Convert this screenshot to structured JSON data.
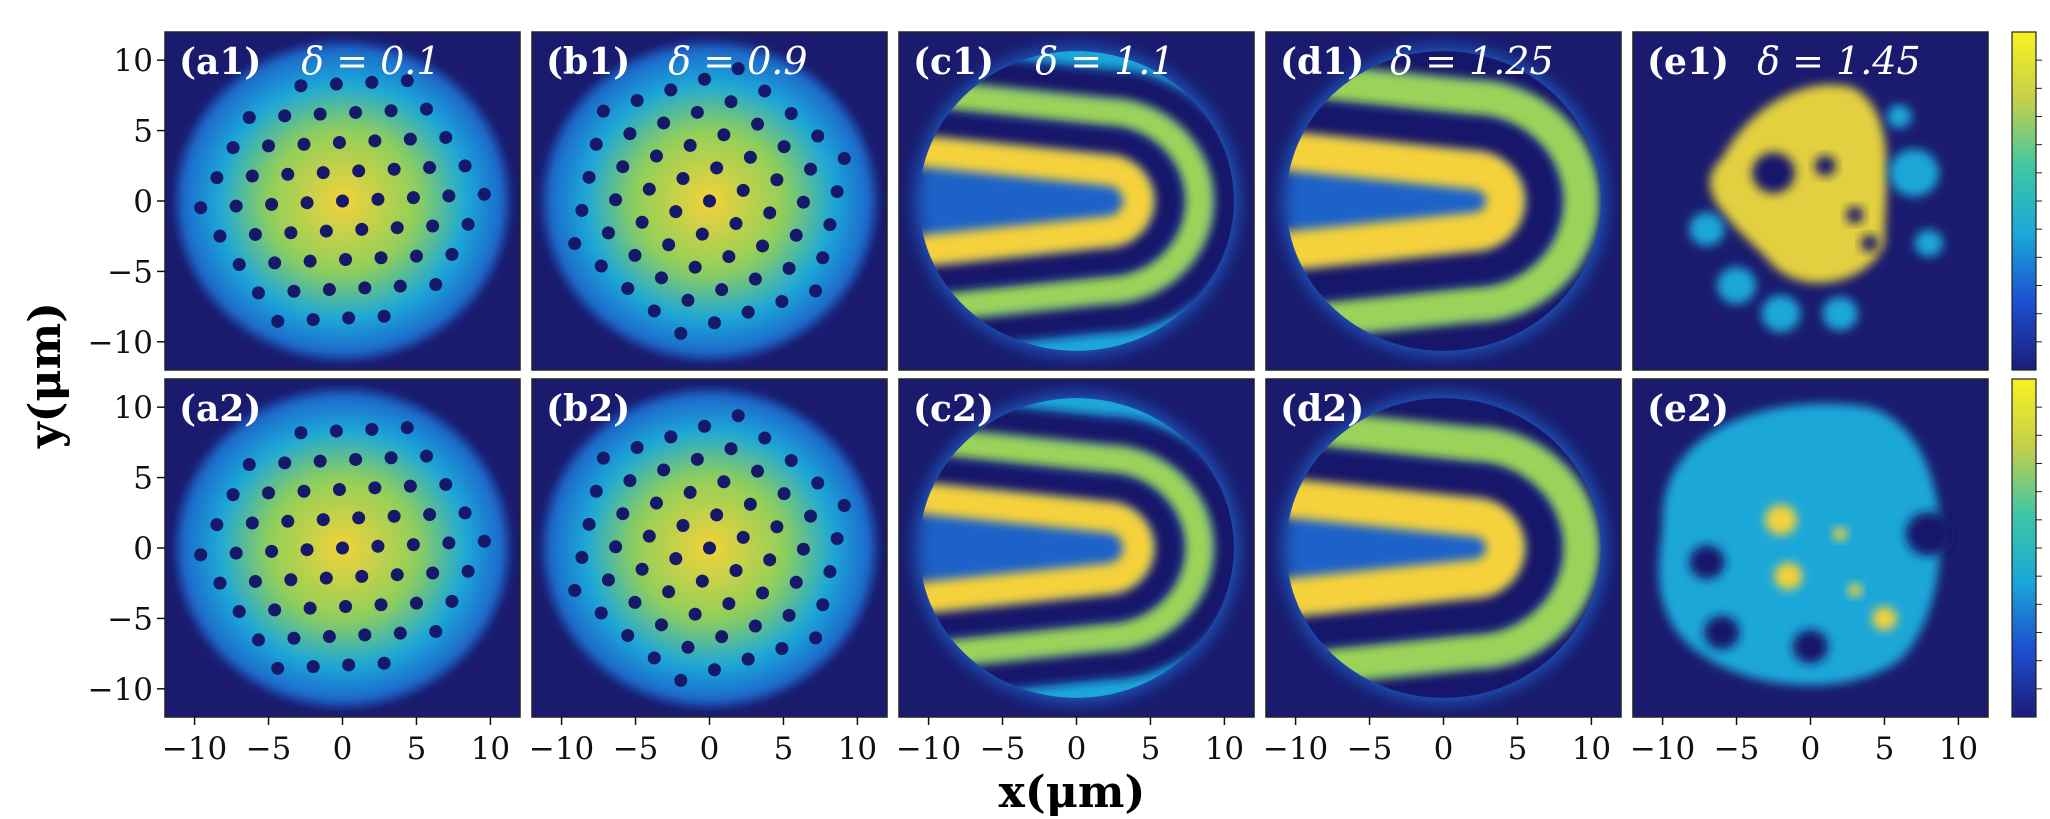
{
  "colors": {
    "background": "#1a1b6e",
    "low": "#1b1d7a",
    "mid": "#1aa7d9",
    "high": "#f5d23a",
    "cbar_top": "#f8f220"
  },
  "chart_data": {
    "type": "heatmap",
    "layout": {
      "rows": 2,
      "cols": 5
    },
    "xlabel": "x(μm)",
    "ylabel": "y(μm)",
    "xlim": [
      -12,
      12
    ],
    "ylim": [
      -12,
      12
    ],
    "xticks": [
      -10,
      -5,
      0,
      5,
      10
    ],
    "yticks": [
      -10,
      -5,
      0,
      5,
      10
    ],
    "xtick_labels": [
      "−10",
      "−5",
      "0",
      "5",
      "10"
    ],
    "ytick_labels": [
      "−10",
      "−5",
      "0",
      "5",
      "10"
    ],
    "colorbar": {
      "count": 2,
      "tick_labels": "none"
    },
    "columns": [
      {
        "delta_text": "δ = 0.1",
        "delta": 0.1,
        "pattern": "lattice",
        "panels": [
          "(a1)",
          "(a2)"
        ]
      },
      {
        "delta_text": "δ = 0.9",
        "delta": 0.9,
        "pattern": "lattice",
        "panels": [
          "(b1)",
          "(b2)"
        ]
      },
      {
        "delta_text": "δ = 1.1",
        "delta": 1.1,
        "pattern": "stripes",
        "panels": [
          "(c1)",
          "(c2)"
        ]
      },
      {
        "delta_text": "δ = 1.25",
        "delta": 1.25,
        "pattern": "stripes",
        "panels": [
          "(d1)",
          "(d2)"
        ]
      },
      {
        "delta_text": "δ = 1.45",
        "delta": 1.45,
        "pattern": "droplets",
        "panels": [
          "(e1)",
          "(e2)"
        ]
      }
    ]
  }
}
